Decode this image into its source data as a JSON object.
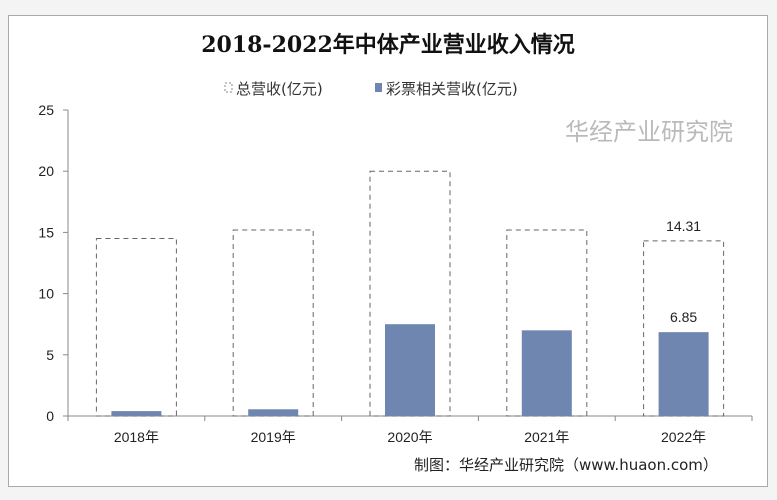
{
  "chart_data": {
    "type": "bar",
    "title": "2018-2022年中体产业营业收入情况",
    "categories": [
      "2018年",
      "2019年",
      "2020年",
      "2021年",
      "2022年"
    ],
    "series": [
      {
        "name": "总营收(亿元)",
        "values": [
          14.5,
          15.2,
          20.0,
          15.2,
          14.31
        ],
        "style": "dashed-outline",
        "color": "#666666"
      },
      {
        "name": "彩票相关营收(亿元)",
        "values": [
          0.4,
          0.55,
          7.5,
          7.0,
          6.85
        ],
        "color": "#6f86b0"
      }
    ],
    "data_labels": {
      "total_2022": "14.31",
      "lottery_2022": "6.85"
    },
    "yticks": [
      "0",
      "5",
      "10",
      "15",
      "20",
      "25"
    ],
    "ylim": [
      0,
      25
    ],
    "xlabel": "",
    "ylabel": "",
    "legend_position": "top",
    "grid": false
  },
  "source": "制图：华经产业研究院（www.huaon.com）",
  "watermark": "华经产业研究院"
}
